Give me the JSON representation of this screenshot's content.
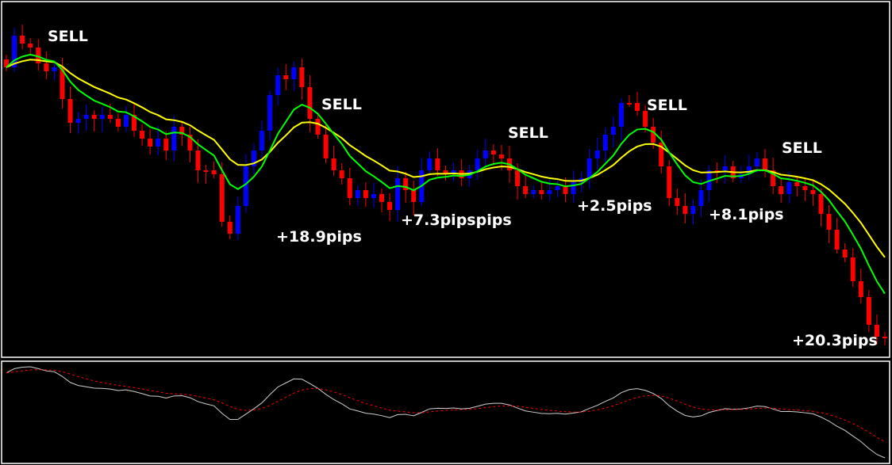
{
  "chart_data": {
    "type": "candlestick",
    "title": "",
    "colors": {
      "bull": "#0000ff",
      "bear": "#ff0000",
      "slow_ma": "#ffff00",
      "fast_ma": "#00ff00",
      "oscillator_main": "#d0d0d0",
      "oscillator_signal": "#ff0000",
      "background": "#000000",
      "frame": "#ffffff"
    },
    "grid": false,
    "closes": [
      375,
      415,
      405,
      400,
      380,
      370,
      375,
      335,
      305,
      310,
      315,
      310,
      315,
      310,
      300,
      315,
      295,
      285,
      275,
      285,
      270,
      300,
      290,
      270,
      245,
      245,
      240,
      180,
      165,
      200,
      250,
      270,
      295,
      340,
      365,
      360,
      375,
      350,
      310,
      290,
      260,
      245,
      235,
      210,
      220,
      210,
      215,
      205,
      195,
      235,
      220,
      205,
      245,
      260,
      245,
      240,
      245,
      235,
      245,
      260,
      270,
      265,
      260,
      245,
      225,
      215,
      220,
      215,
      220,
      225,
      215,
      230,
      235,
      260,
      270,
      290,
      300,
      330,
      330,
      320,
      300,
      280,
      250,
      210,
      200,
      190,
      200,
      220,
      245,
      245,
      250,
      235,
      240,
      250,
      260,
      245,
      225,
      215,
      230,
      225,
      220,
      215,
      190,
      170,
      145,
      135,
      105,
      85,
      50,
      35,
      35
    ],
    "annotations": [
      {
        "text": "SELL",
        "candle": 6
      },
      {
        "text": "SELL",
        "candle": 41
      },
      {
        "text": "SELL",
        "candle": 65
      },
      {
        "text": "SELL",
        "candle": 83
      },
      {
        "text": "SELL",
        "candle": 100
      },
      {
        "text": "+18.9pips",
        "candle": 35
      },
      {
        "text": "+7.3pipspips",
        "candle": 51
      },
      {
        "text": "+2.5pips",
        "candle": 73
      },
      {
        "text": "+8.1pips",
        "candle": 90
      },
      {
        "text": "+20.3pips",
        "candle": 101
      }
    ]
  }
}
